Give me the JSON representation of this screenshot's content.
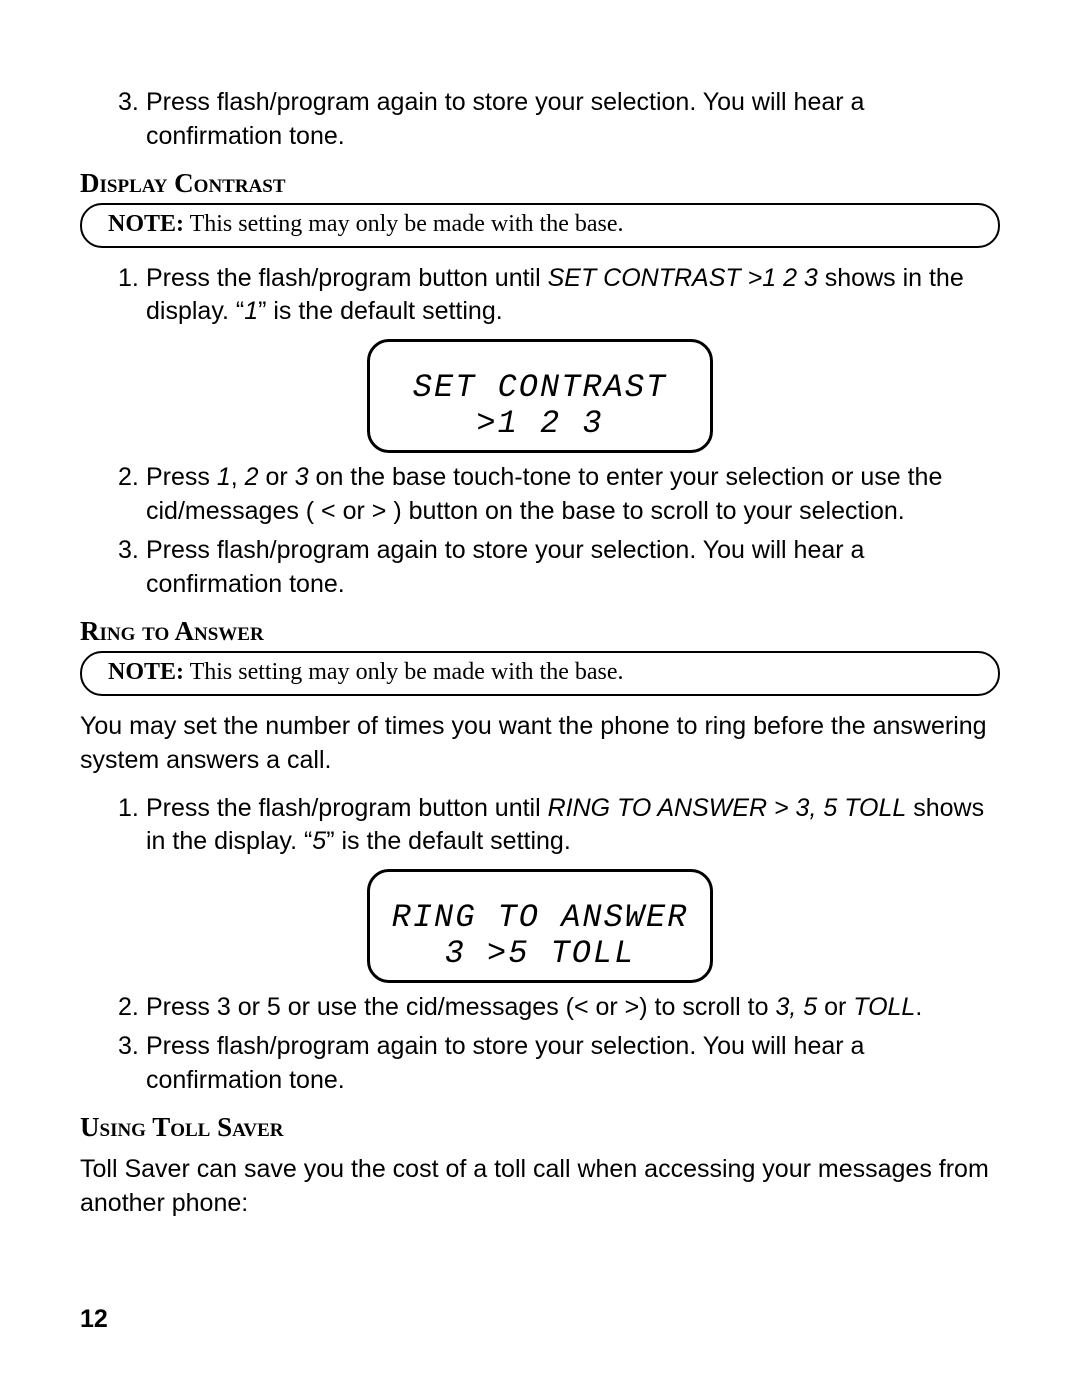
{
  "step_contrast_store": {
    "num": "3.",
    "text_a": "Press flash/program again to store your selection. You will hear a confirmation tone."
  },
  "section_contrast": {
    "heading": "Display Contrast",
    "note_label": "NOTE:",
    "note_text": " This setting may only be made with the base.",
    "step1": {
      "num": "1.",
      "t1": "Press the flash/program button until ",
      "i1": "SET CONTRAST >1 2 3",
      "t2": " shows in the display. “",
      "i2": "1",
      "t3": "” is the default setting."
    },
    "lcd": {
      "line1": "SET CONTRAST",
      "line2": ">1 2 3"
    },
    "step2": {
      "num": "2.",
      "t1": "Press ",
      "i1": "1",
      "t2": ", ",
      "i2": "2",
      "t3": " or ",
      "i3": "3",
      "t4": " on the base touch-tone to enter your selection or use the cid/messages ( < or > ) button on the base to scroll to your selection."
    },
    "step3": {
      "num": "3.",
      "text": "Press flash/program again to store your selection. You will hear a confirmation tone."
    }
  },
  "section_ring": {
    "heading": "Ring to Answer",
    "note_label": "NOTE:",
    "note_text": " This setting may only be made with the base.",
    "intro": "You may set the number of times you want the phone to ring before the answering system answers a call.",
    "step1": {
      "num": "1.",
      "t1": "Press the flash/program button until ",
      "i1": "RING TO ANSWER > 3, 5 TOLL",
      "t2": " shows in the display. “",
      "i2": "5",
      "t3": "” is the default setting."
    },
    "lcd": {
      "line1": "RING TO ANSWER",
      "line2": "3 >5  TOLL"
    },
    "step2": {
      "num": "2.",
      "t1": "Press 3 or 5 or use the cid/messages (< or >) to scroll to ",
      "i1": "3, 5",
      "t2": " or ",
      "i2": "TOLL",
      "t3": "."
    },
    "step3": {
      "num": "3.",
      "text": "Press flash/program again to store your selection. You will hear a confirmation tone."
    }
  },
  "section_toll": {
    "heading": "Using Toll Saver",
    "text": "Toll Saver can save you the cost of a toll call when accessing your messages from another phone:"
  },
  "page_number": "12"
}
